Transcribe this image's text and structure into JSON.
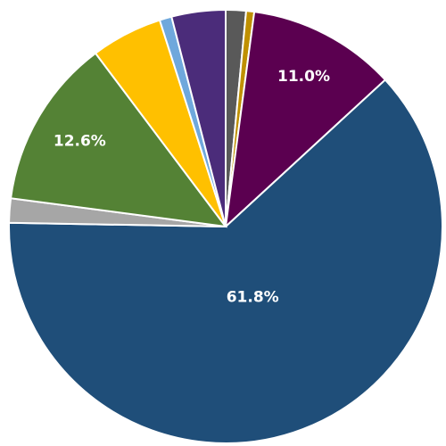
{
  "chart_data": {
    "type": "pie",
    "values": [
      1.5,
      0.6,
      11.0,
      61.8,
      1.8,
      12.6,
      5.3,
      0.9,
      4.0
    ],
    "value_labels": [
      null,
      null,
      "11.0%",
      "61.8%",
      null,
      "12.6%",
      null,
      null,
      null
    ],
    "colors": [
      "#595959",
      "#bf9000",
      "#5b0050",
      "#1f4e79",
      "#a6a6a6",
      "#548235",
      "#ffc000",
      "#6fa8dc",
      "#4b2c7a"
    ]
  }
}
